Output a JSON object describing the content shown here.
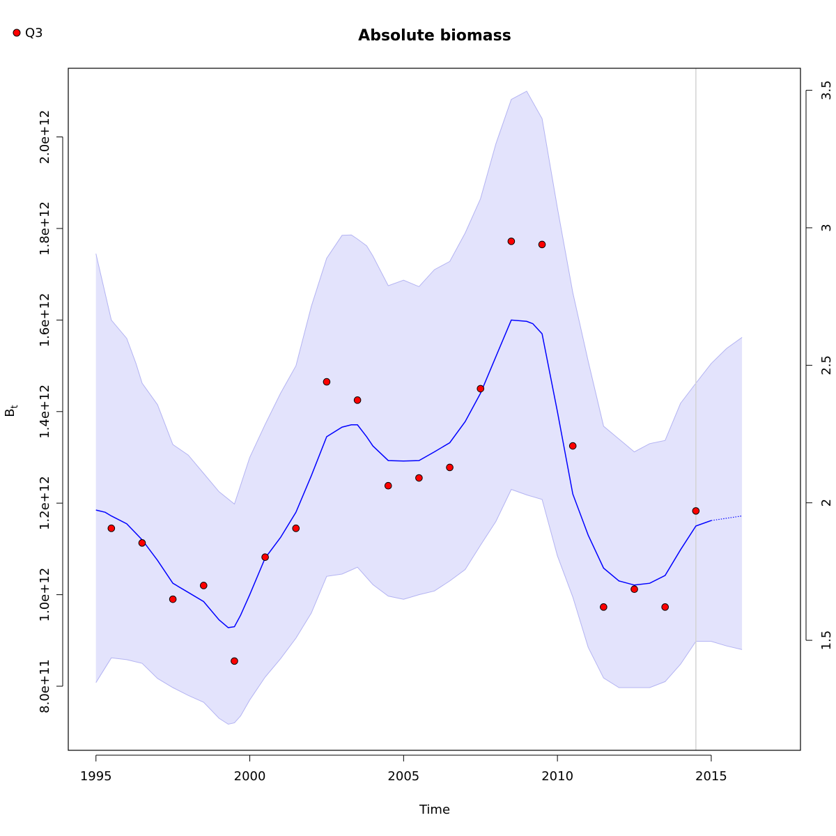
{
  "chart_data": {
    "type": "line",
    "title": "Absolute biomass",
    "xlabel": "Time",
    "ylabel": "B",
    "ylabel_sub": "t",
    "xlim": [
      1994.1,
      2017.9
    ],
    "ylim": [
      660000000000.0,
      2150000000000.0
    ],
    "y2lim": [
      1.1,
      3.58
    ],
    "x_ticks": [
      1995,
      2000,
      2005,
      2010,
      2015
    ],
    "y_ticks": [
      800000000000.0,
      1000000000000.0,
      1200000000000.0,
      1400000000000.0,
      1600000000000.0,
      1800000000000.0,
      2000000000000.0
    ],
    "y_tick_labels": [
      "8.0e+11",
      "1.0e+12",
      "1.2e+12",
      "1.4e+12",
      "1.6e+12",
      "1.8e+12",
      "2.0e+12"
    ],
    "y2_ticks": [
      1.5,
      2,
      2.5,
      3,
      3.5
    ],
    "y2_tick_labels": [
      "1.5",
      "2",
      "2.5",
      "3",
      "3.5"
    ],
    "vline_x": 2014.5,
    "legend": {
      "position": "top-left",
      "entries": [
        {
          "label": "Q3",
          "color": "#ff0000"
        }
      ]
    },
    "colors": {
      "band_fill": "#e3e3fc",
      "band_edge": "#b3b3f2",
      "line": "#0000ff",
      "points_fill": "#ff0000",
      "points_edge": "#000000",
      "vline": "#d3d3d3"
    },
    "series": [
      {
        "kind": "estimate",
        "x": [
          1995,
          1995.3,
          1995.5,
          1996,
          1996.5,
          1997,
          1997.5,
          1998,
          1998.5,
          1999,
          1999.3,
          1999.5,
          1999.7,
          2000,
          2000.5,
          2001,
          2001.5,
          2002,
          2002.5,
          2003,
          2003.3,
          2003.5,
          2003.8,
          2004,
          2004.5,
          2005,
          2005.5,
          2006,
          2006.5,
          2007,
          2007.5,
          2008,
          2008.5,
          2009,
          2009.2,
          2009.5,
          2010,
          2010.5,
          2011,
          2011.5,
          2012,
          2012.5,
          2013,
          2013.5,
          2014,
          2014.5,
          2015
        ],
        "y": [
          1185000000000.0,
          1180000000000.0,
          1172000000000.0,
          1155000000000.0,
          1120000000000.0,
          1075000000000.0,
          1025000000000.0,
          1005000000000.0,
          985000000000.0,
          945000000000.0,
          928000000000.0,
          930000000000.0,
          955000000000.0,
          1000000000000.0,
          1080000000000.0,
          1125000000000.0,
          1180000000000.0,
          1260000000000.0,
          1345000000000.0,
          1366000000000.0,
          1371000000000.0,
          1371000000000.0,
          1345000000000.0,
          1325000000000.0,
          1293000000000.0,
          1292000000000.0,
          1293000000000.0,
          1312000000000.0,
          1332000000000.0,
          1378000000000.0,
          1440000000000.0,
          1520000000000.0,
          1600000000000.0,
          1597000000000.0,
          1592000000000.0,
          1570000000000.0,
          1400000000000.0,
          1220000000000.0,
          1130000000000.0,
          1058000000000.0,
          1030000000000.0,
          1021000000000.0,
          1025000000000.0,
          1042000000000.0,
          1098000000000.0,
          1150000000000.0,
          1162000000000.0
        ]
      },
      {
        "kind": "forecast",
        "x": [
          2015,
          2015.5,
          2016
        ],
        "y": [
          1162000000000.0,
          1167000000000.0,
          1172000000000.0
        ]
      },
      {
        "kind": "upper_ci",
        "x": [
          1995,
          1995.5,
          1996,
          1996.3,
          1996.5,
          1997,
          1997.5,
          1998,
          1998.5,
          1999,
          1999.5,
          2000,
          2000.5,
          2001,
          2001.5,
          2002,
          2002.5,
          2003,
          2003.3,
          2003.5,
          2003.8,
          2004,
          2004.5,
          2005,
          2005.5,
          2006,
          2006.5,
          2007,
          2007.5,
          2008,
          2008.5,
          2009,
          2009.5,
          2010,
          2010.5,
          2011,
          2011.5,
          2012,
          2012.5,
          2013,
          2013.5,
          2014,
          2014.5,
          2015,
          2015.5,
          2016
        ],
        "y": [
          1745000000000.0,
          1600000000000.0,
          1560000000000.0,
          1505000000000.0,
          1462000000000.0,
          1415000000000.0,
          1328000000000.0,
          1305000000000.0,
          1265000000000.0,
          1225000000000.0,
          1198000000000.0,
          1300000000000.0,
          1372000000000.0,
          1440000000000.0,
          1500000000000.0,
          1630000000000.0,
          1735000000000.0,
          1785000000000.0,
          1786000000000.0,
          1777000000000.0,
          1762000000000.0,
          1740000000000.0,
          1675000000000.0,
          1687000000000.0,
          1673000000000.0,
          1710000000000.0,
          1728000000000.0,
          1790000000000.0,
          1865000000000.0,
          1985000000000.0,
          2082000000000.0,
          2100000000000.0,
          2040000000000.0,
          1845000000000.0,
          1660000000000.0,
          1510000000000.0,
          1368000000000.0,
          1340000000000.0,
          1312000000000.0,
          1330000000000.0,
          1337000000000.0,
          1418000000000.0,
          1462000000000.0,
          1505000000000.0,
          1538000000000.0,
          1562000000000.0
        ]
      },
      {
        "kind": "lower_ci",
        "x": [
          1995,
          1995.5,
          1996,
          1996.5,
          1997,
          1997.5,
          1998,
          1998.5,
          1999,
          1999.3,
          1999.5,
          1999.7,
          2000,
          2000.5,
          2001,
          2001.5,
          2002,
          2002.5,
          2003,
          2003.5,
          2004,
          2004.5,
          2005,
          2005.5,
          2006,
          2006.5,
          2007,
          2007.5,
          2008,
          2008.5,
          2009,
          2009.5,
          2010,
          2010.5,
          2011,
          2011.5,
          2012,
          2012.5,
          2013,
          2013.5,
          2014,
          2014.5,
          2015,
          2015.5,
          2016
        ],
        "y": [
          808000000000.0,
          862000000000.0,
          858000000000.0,
          850000000000.0,
          817000000000.0,
          797000000000.0,
          780000000000.0,
          765000000000.0,
          730000000000.0,
          717000000000.0,
          720000000000.0,
          735000000000.0,
          770000000000.0,
          820000000000.0,
          860000000000.0,
          905000000000.0,
          960000000000.0,
          1040000000000.0,
          1045000000000.0,
          1060000000000.0,
          1022000000000.0,
          997000000000.0,
          990000000000.0,
          1000000000000.0,
          1008000000000.0,
          1030000000000.0,
          1055000000000.0,
          1108000000000.0,
          1160000000000.0,
          1230000000000.0,
          1218000000000.0,
          1208000000000.0,
          1085000000000.0,
          995000000000.0,
          885000000000.0,
          818000000000.0,
          797000000000.0,
          797000000000.0,
          797000000000.0,
          810000000000.0,
          848000000000.0,
          898000000000.0,
          898000000000.0,
          888000000000.0,
          880000000000.0
        ]
      },
      {
        "kind": "observations",
        "name": "Q3",
        "x": [
          1995.5,
          1996.5,
          1997.5,
          1998.5,
          1999.5,
          2000.5,
          2001.5,
          2002.5,
          2003.5,
          2004.5,
          2005.5,
          2006.5,
          2007.5,
          2008.5,
          2009.5,
          2010.5,
          2011.5,
          2012.5,
          2013.5,
          2014.5
        ],
        "y": [
          1145000000000.0,
          1113000000000.0,
          990000000000.0,
          1020000000000.0,
          855000000000.0,
          1082000000000.0,
          1145000000000.0,
          1465000000000.0,
          1425000000000.0,
          1238000000000.0,
          1255000000000.0,
          1278000000000.0,
          1450000000000.0,
          1772000000000.0,
          1765000000000.0,
          1325000000000.0,
          973000000000.0,
          1012000000000.0,
          973000000000.0,
          1183000000000.0
        ]
      }
    ]
  }
}
